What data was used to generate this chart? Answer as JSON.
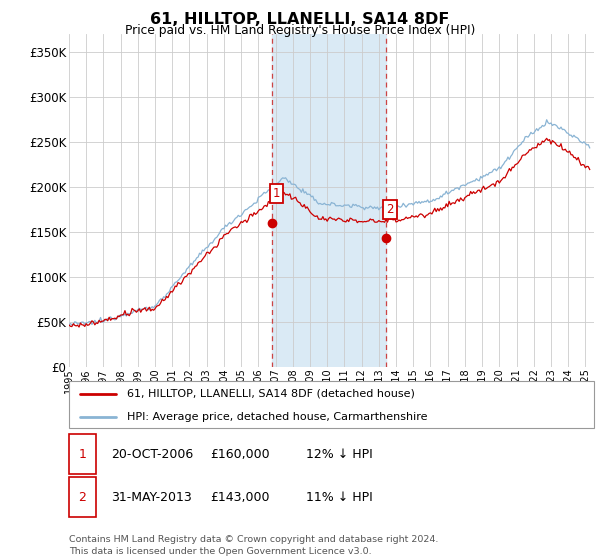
{
  "title": "61, HILLTOP, LLANELLI, SA14 8DF",
  "subtitle": "Price paid vs. HM Land Registry's House Price Index (HPI)",
  "ylabel_ticks": [
    "£0",
    "£50K",
    "£100K",
    "£150K",
    "£200K",
    "£250K",
    "£300K",
    "£350K"
  ],
  "ytick_values": [
    0,
    50000,
    100000,
    150000,
    200000,
    250000,
    300000,
    350000
  ],
  "ylim": [
    0,
    370000
  ],
  "xlim_start": 1995.0,
  "xlim_end": 2025.5,
  "hpi_color": "#8ab4d4",
  "price_color": "#cc0000",
  "marker1_x": 2006.8,
  "marker1_y": 160000,
  "marker2_x": 2013.4,
  "marker2_y": 143000,
  "marker1_label": "1",
  "marker2_label": "2",
  "legend_line1": "61, HILLTOP, LLANELLI, SA14 8DF (detached house)",
  "legend_line2": "HPI: Average price, detached house, Carmarthenshire",
  "table_row1_num": "1",
  "table_row1_date": "20-OCT-2006",
  "table_row1_price": "£160,000",
  "table_row1_hpi": "12% ↓ HPI",
  "table_row2_num": "2",
  "table_row2_date": "31-MAY-2013",
  "table_row2_price": "£143,000",
  "table_row2_hpi": "11% ↓ HPI",
  "footnote1": "Contains HM Land Registry data © Crown copyright and database right 2024.",
  "footnote2": "This data is licensed under the Open Government Licence v3.0.",
  "shaded_region_start": 2006.8,
  "shaded_region_end": 2013.4,
  "background_color": "#ffffff",
  "grid_color": "#cccccc",
  "shaded_color": "#daeaf5"
}
